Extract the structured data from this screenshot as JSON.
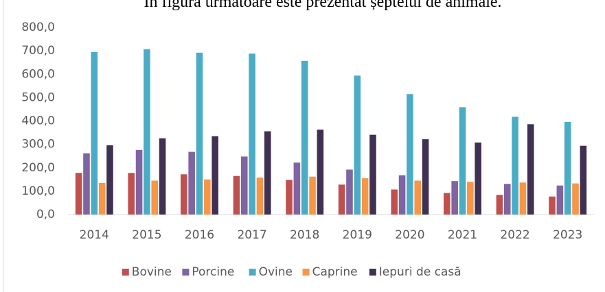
{
  "chart_data": {
    "type": "bar",
    "title": "În figura următoare este prezentat șeptelul de animale.",
    "categories": [
      "2014",
      "2015",
      "2016",
      "2017",
      "2018",
      "2019",
      "2020",
      "2021",
      "2022",
      "2023"
    ],
    "series": [
      {
        "name": "Bovine",
        "color": "#c0504d",
        "values": [
          178,
          178,
          172,
          165,
          148,
          128,
          107,
          92,
          84,
          77
        ]
      },
      {
        "name": "Porcine",
        "color": "#8064a2",
        "values": [
          262,
          276,
          268,
          248,
          222,
          192,
          168,
          143,
          131,
          124
        ]
      },
      {
        "name": "Ovine",
        "color": "#4bacc6",
        "values": [
          695,
          707,
          692,
          688,
          657,
          594,
          515,
          459,
          418,
          396
        ]
      },
      {
        "name": "Caprine",
        "color": "#f79646",
        "values": [
          135,
          145,
          150,
          158,
          162,
          155,
          145,
          140,
          137,
          133
        ]
      },
      {
        "name": "Iepuri de casă",
        "color": "#403152",
        "values": [
          296,
          326,
          335,
          356,
          363,
          341,
          322,
          308,
          386,
          294
        ]
      }
    ],
    "ylim": [
      0,
      800
    ],
    "yticks": [
      {
        "value": 0,
        "label": "0,0"
      },
      {
        "value": 100,
        "label": "100,0"
      },
      {
        "value": 200,
        "label": "200,0"
      },
      {
        "value": 300,
        "label": "300,0"
      },
      {
        "value": 400,
        "label": "400,0"
      },
      {
        "value": 500,
        "label": "500,0"
      },
      {
        "value": 600,
        "label": "600,0"
      },
      {
        "value": 700,
        "label": "700,0"
      },
      {
        "value": 800,
        "label": "800,0"
      }
    ],
    "grid": false,
    "legend": "bottom"
  }
}
